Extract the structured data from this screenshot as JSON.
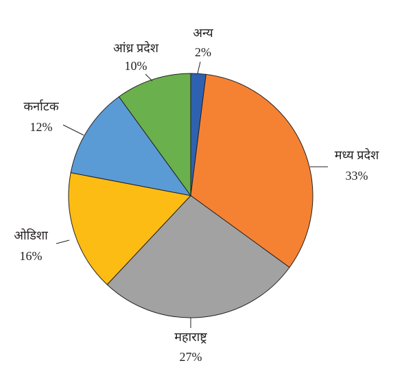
{
  "chart_data": {
    "type": "pie",
    "categories": [
      "अन्य",
      "मध्य प्रदेश",
      "महाराष्ट्र",
      "ओडिशा",
      "कर्नाटक",
      "आंध्र प्रदेश"
    ],
    "values": [
      2,
      33,
      27,
      16,
      12,
      10
    ],
    "value_labels": [
      "2%",
      "33%",
      "27%",
      "16%",
      "12%",
      "10%"
    ],
    "colors": [
      "#2e62b0",
      "#f58233",
      "#a2a2a2",
      "#fdbc13",
      "#5b9bd5",
      "#6ab04d"
    ]
  }
}
